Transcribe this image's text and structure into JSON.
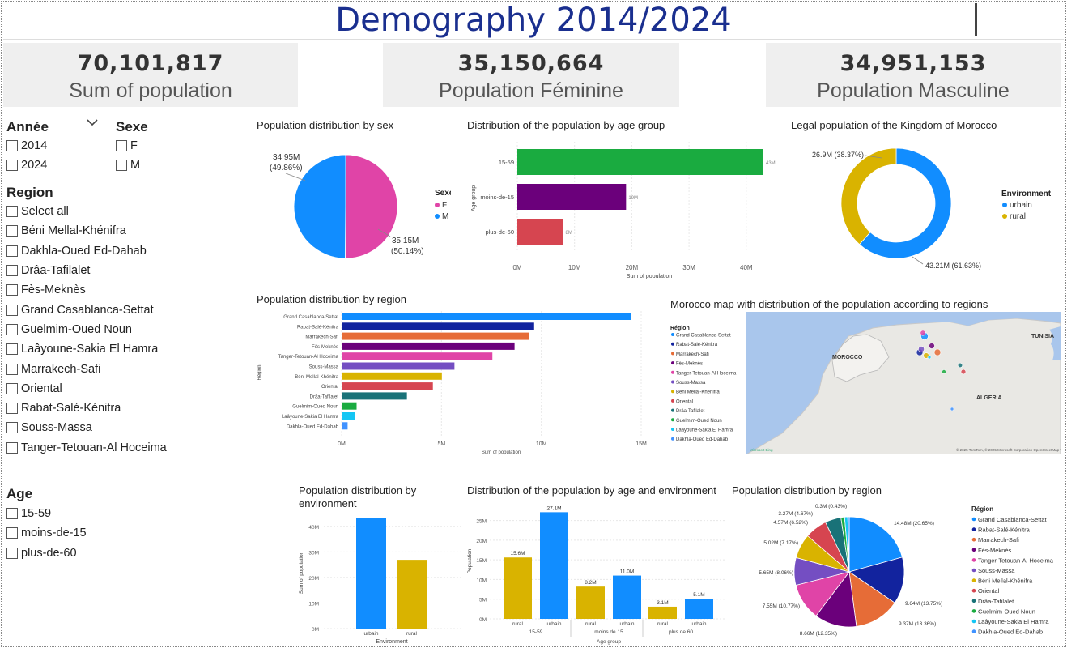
{
  "title": "Demography 2014/2024",
  "kpis": [
    {
      "value": "70,101,817",
      "label": "Sum of population"
    },
    {
      "value": "35,150,664",
      "label": "Population Féminine"
    },
    {
      "value": "34,951,153",
      "label": "Population Masculine"
    }
  ],
  "slicers": {
    "annee": {
      "title": "Année",
      "options": [
        "2014",
        "2024"
      ]
    },
    "sexe": {
      "title": "Sexe",
      "options": [
        "F",
        "M"
      ]
    },
    "region": {
      "title": "Region",
      "options": [
        "Select all",
        "Béni Mellal-Khénifra",
        "Dakhla-Oued Ed-Dahab",
        "Drâa-Tafilalet",
        "Fès-Meknès",
        "Grand Casablanca-Settat",
        "Guelmim-Oued Noun",
        "Laâyoune-Sakia El Hamra",
        "Marrakech-Safi",
        "Oriental",
        "Rabat-Salé-Kénitra",
        "Souss-Massa",
        "Tanger-Tetouan-Al Hoceima"
      ]
    },
    "age": {
      "title": "Age",
      "options": [
        "15-59",
        "moins-de-15",
        "plus-de-60"
      ]
    }
  },
  "colors": {
    "F": "#e044a7",
    "M": "#118dff",
    "urbain": "#118dff",
    "rural": "#d9b300",
    "age": [
      "#1aab40",
      "#6b007b",
      "#d64550"
    ],
    "regions": [
      "#118dff",
      "#12239e",
      "#e66c37",
      "#6b007b",
      "#e044a7",
      "#744ec2",
      "#d9b300",
      "#d64550",
      "#197278",
      "#1aab40",
      "#15c6f4",
      "#4092ff"
    ]
  },
  "visual_titles": {
    "sex": "Population distribution by sex",
    "age": "Distribution of the population by age group",
    "legal": "Legal population of the Kingdom of Morocco",
    "region_bar": "Population distribution by region",
    "map": "Morocco map with distribution of the population according to regions",
    "env": "Population distribution by environment",
    "age_env": "Distribution of the population by age and environment",
    "region_pie": "Population distribution by region"
  },
  "legends": {
    "sexe": "Sexe",
    "environment": "Environment",
    "region": "Région"
  },
  "map_labels": {
    "morocco": "MOROCCO",
    "algeria": "ALGERIA",
    "tunisia": "TUNISIA",
    "copyright": "© 2025 TomTom, © 2025 Microsoft Corporation",
    "osm": "OpenStreetMap",
    "terms": "Terms",
    "bing": "Microsoft Bing"
  },
  "chart_data": [
    {
      "type": "pie",
      "title": "Population distribution by sex",
      "legend_title": "Sexe",
      "categories": [
        "F",
        "M"
      ],
      "values": [
        35.15,
        34.95
      ],
      "labels": [
        [
          "35.15M",
          "(50.14%)"
        ],
        [
          "34.95M",
          "(49.86%)"
        ]
      ],
      "unit": "M"
    },
    {
      "type": "bar",
      "orientation": "horizontal",
      "title": "Distribution of the population by age group",
      "categories": [
        "15-59",
        "moins-de-15",
        "plus-de-60"
      ],
      "values": [
        43,
        19,
        8
      ],
      "data_labels": [
        "43M",
        "19M",
        "8M"
      ],
      "xlabel": "Sum of population",
      "ylabel": "Age group",
      "xticks": [
        "0M",
        "10M",
        "20M",
        "30M",
        "40M"
      ],
      "xlim": [
        0,
        43
      ]
    },
    {
      "type": "pie",
      "donut": true,
      "title": "Legal population of the Kingdom of Morocco",
      "legend_title": "Environment",
      "categories": [
        "urbain",
        "rural"
      ],
      "values": [
        43.21,
        26.9
      ],
      "labels": [
        "43.21M (61.63%)",
        "26.9M (38.37%)"
      ]
    },
    {
      "type": "bar",
      "orientation": "horizontal",
      "title": "Population distribution by region",
      "categories": [
        "Grand Casablanca-Settat",
        "Rabat-Salé-Kénitra",
        "Marrakech-Safi",
        "Fès-Meknès",
        "Tanger-Tetouan-Al Hoceima",
        "Souss-Massa",
        "Béni Mellal-Khénifra",
        "Oriental",
        "Drâa-Tafilalet",
        "Guelmim-Oued Noun",
        "Laâyoune-Sakia El Hamra",
        "Dakhla-Oued Ed-Dahab"
      ],
      "values": [
        14.48,
        9.64,
        9.37,
        8.66,
        7.55,
        5.65,
        5.02,
        4.57,
        3.27,
        0.75,
        0.65,
        0.3
      ],
      "xlabel": "Sum of population",
      "ylabel": "Région",
      "xticks": [
        "0M",
        "5M",
        "10M",
        "15M"
      ],
      "xlim": [
        0,
        15
      ]
    },
    {
      "type": "bar",
      "title": "Population distribution by environment",
      "categories": [
        "urbain",
        "rural"
      ],
      "values": [
        43.21,
        26.9
      ],
      "xlabel": "Environment",
      "ylabel": "Sum of population",
      "yticks": [
        "0M",
        "10M",
        "20M",
        "30M",
        "40M"
      ],
      "ylim": [
        0,
        45
      ]
    },
    {
      "type": "bar",
      "title": "Distribution of the population by age and environment",
      "groups": [
        "15-59",
        "moins de 15",
        "plus de 60"
      ],
      "categories": [
        "rural",
        "urbain",
        "rural",
        "urbain",
        "rural",
        "urbain"
      ],
      "values": [
        15.6,
        27.1,
        8.2,
        11.0,
        3.1,
        5.1
      ],
      "data_labels": [
        "15.6M",
        "27.1M",
        "8.2M",
        "11.0M",
        "3.1M",
        "5.1M"
      ],
      "xlabel": "Age group",
      "ylabel": "Population",
      "yticks": [
        "0M",
        "5M",
        "10M",
        "15M",
        "20M",
        "25M"
      ],
      "ylim": [
        0,
        28
      ]
    },
    {
      "type": "pie",
      "title": "Population distribution by region",
      "legend_title": "Région",
      "categories": [
        "Grand Casablanca-Settat",
        "Rabat-Salé-Kénitra",
        "Marrakech-Safi",
        "Fès-Meknès",
        "Tanger-Tetouan-Al Hoceima",
        "Souss-Massa",
        "Béni Mellal-Khénifra",
        "Oriental",
        "Drâa-Tafilalet",
        "Guelmim-Oued Noun",
        "Laâyoune-Sakia El Hamra",
        "Dakhla-Oued Ed-Dahab"
      ],
      "values": [
        14.48,
        9.64,
        9.37,
        8.66,
        7.55,
        5.65,
        5.02,
        4.57,
        3.27,
        0.75,
        0.65,
        0.3
      ],
      "labels": [
        "14.48M (20.65%)",
        "9.64M (13.75%)",
        "9.37M (13.36%)",
        "8.66M (12.35%)",
        "7.55M (10.77%)",
        "5.65M (8.06%)",
        "5.02M (7.17%)",
        "4.57M (6.52%)",
        "3.27M (4.67%)",
        "",
        "",
        "0.3M (0.43%)"
      ]
    }
  ]
}
